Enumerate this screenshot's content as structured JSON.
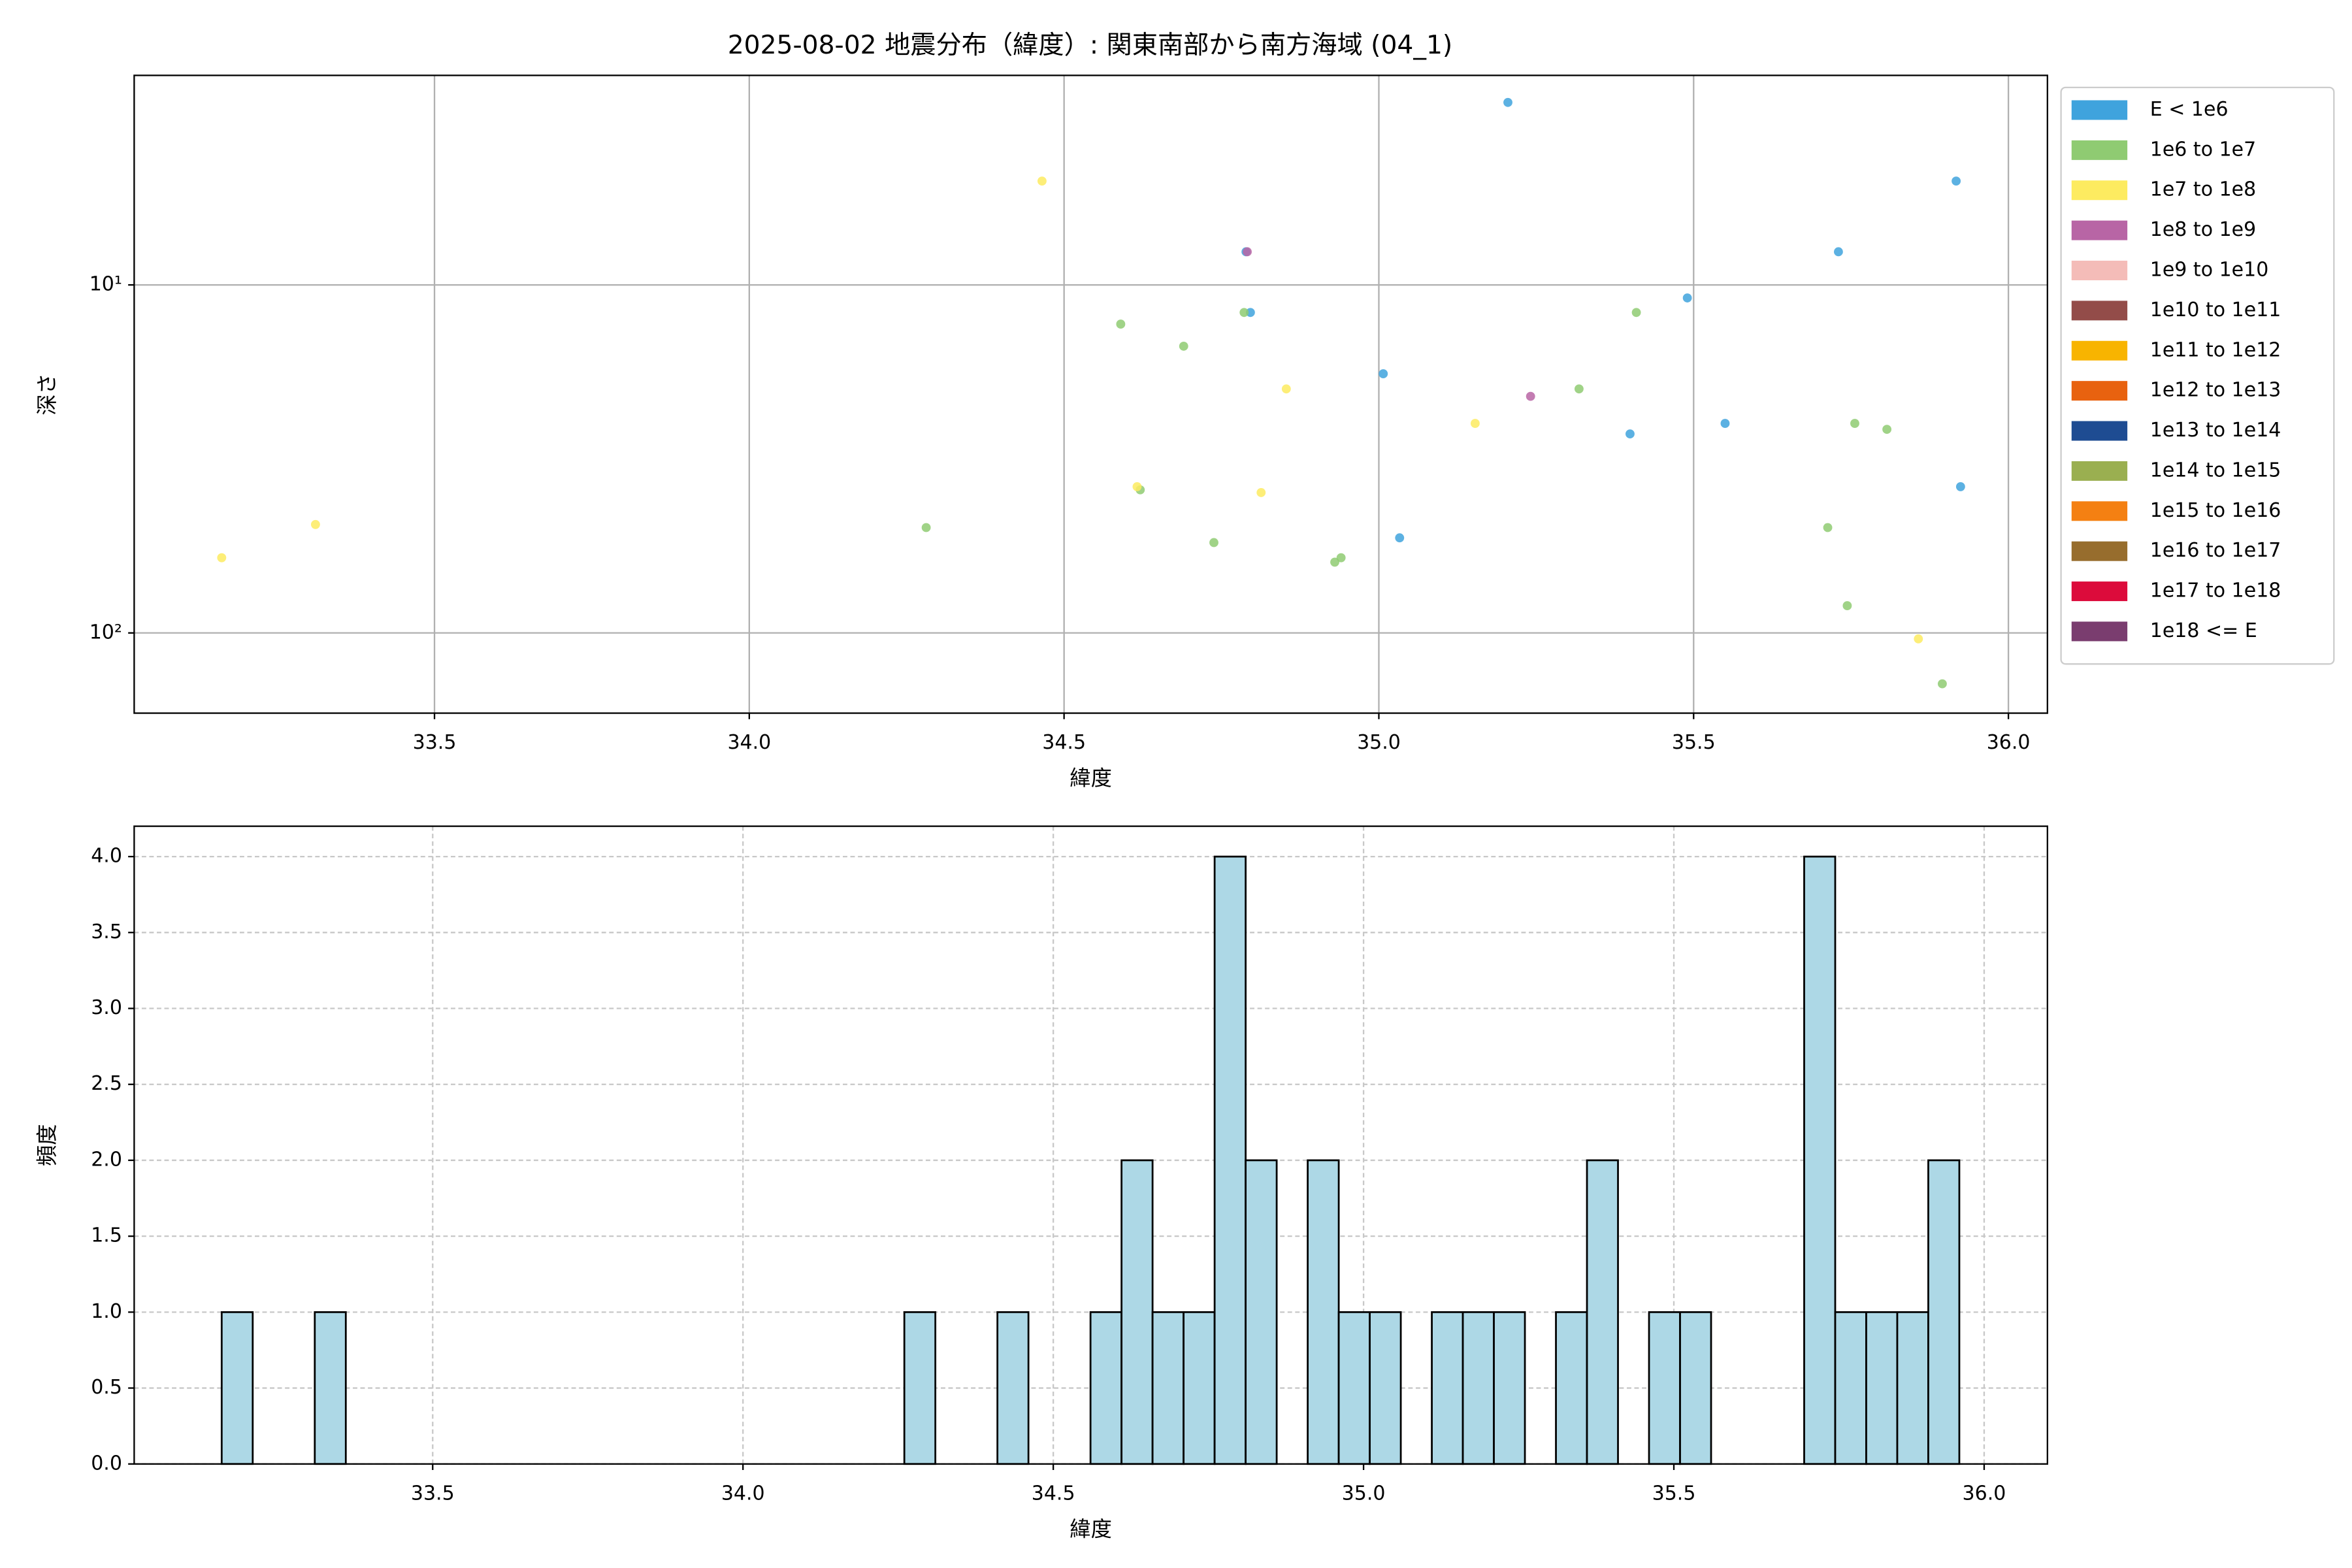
{
  "chart_data": [
    {
      "type": "scatter",
      "title": "2025-08-02 地震分布（緯度）: 関東南部から南方海域 (04_1)",
      "xlabel": "緯度",
      "ylabel": "深さ",
      "yscale": "log",
      "grid": true,
      "grid_style": "solid",
      "legend": "outside right",
      "xlim": [
        33.023,
        36.062
      ],
      "ylim": [
        170,
        2.5
      ],
      "xticks": [
        33.5,
        {
          "value": 34.0,
          "label": "34.0"
        },
        34.5,
        {
          "value": 35.0,
          "label": "35.0"
        },
        35.5,
        {
          "value": 36.0,
          "label": "36.0"
        }
      ],
      "yticks": [
        {
          "value": 10,
          "label": "10¹"
        },
        {
          "value": 100,
          "label": "10²"
        }
      ],
      "series": [
        {
          "name": "E < 1e6",
          "color": "#3fa3dd",
          "x": [
            34.789,
            34.796,
            35.007,
            35.033,
            35.205,
            35.399,
            35.49,
            35.55,
            35.73,
            35.917,
            35.924
          ],
          "values": [
            8.03,
            12.0,
            18.0,
            53.3,
            2.99,
            26.8,
            10.9,
            25.0,
            8.03,
            5.03,
            38.0
          ]
        },
        {
          "name": "1e6 to 1e7",
          "color": "#8fcb72",
          "x": [
            34.281,
            34.59,
            34.621,
            34.69,
            34.738,
            34.786,
            34.93,
            34.94,
            35.318,
            35.409,
            35.713,
            35.744,
            35.756,
            35.807,
            35.895
          ],
          "values": [
            49.8,
            12.96,
            38.8,
            15.0,
            55.0,
            12.0,
            62.6,
            60.8,
            19.9,
            12.0,
            49.8,
            83.5,
            25.0,
            26.0,
            140
          ]
        },
        {
          "name": "1e7 to 1e8",
          "color": "#fdeb60",
          "x": [
            33.162,
            33.311,
            34.465,
            34.616,
            34.813,
            34.853,
            35.153,
            35.857
          ],
          "values": [
            60.8,
            48.8,
            5.03,
            38.0,
            39.5,
            19.9,
            25.0,
            104
          ]
        },
        {
          "name": "1e8 to 1e9",
          "color": "#b865a5",
          "x": [
            34.791,
            35.241
          ],
          "values": [
            8.03,
            20.9
          ]
        },
        {
          "name": "1e9 to 1e10",
          "color": "#f4bcb8",
          "x": [],
          "values": []
        },
        {
          "name": "1e10 to 1e11",
          "color": "#934c49",
          "x": [],
          "values": []
        },
        {
          "name": "1e11 to 1e12",
          "color": "#f8b400",
          "x": [],
          "values": []
        },
        {
          "name": "1e12 to 1e13",
          "color": "#e8620f",
          "x": [],
          "values": []
        },
        {
          "name": "1e13 to 1e14",
          "color": "#1e4c92",
          "x": [],
          "values": []
        },
        {
          "name": "1e14 to 1e15",
          "color": "#9aaf50",
          "x": [],
          "values": []
        },
        {
          "name": "1e15 to 1e16",
          "color": "#f48012",
          "x": [],
          "values": []
        },
        {
          "name": "1e16 to 1e17",
          "color": "#976d2d",
          "x": [],
          "values": []
        },
        {
          "name": "1e17 to 1e18",
          "color": "#dc0b3b",
          "x": [],
          "values": []
        },
        {
          "name": "1e18 <= E",
          "color": "#7a3d6f",
          "x": [],
          "values": []
        }
      ]
    },
    {
      "type": "histogram",
      "xlabel": "緯度",
      "ylabel": "頻度",
      "grid": true,
      "grid_style": "dashed",
      "color": "#add8e6",
      "edgecolor": "#000000",
      "xlim": [
        33.019,
        36.102
      ],
      "ylim": [
        0,
        4.2
      ],
      "xticks": [
        33.5,
        {
          "value": 34.0,
          "label": "34.0"
        },
        34.5,
        {
          "value": 35.0,
          "label": "35.0"
        },
        35.5,
        {
          "value": 36.0,
          "label": "36.0"
        }
      ],
      "yticks": [
        {
          "value": 0,
          "label": "0.0"
        },
        0.5,
        {
          "value": 1,
          "label": "1.0"
        },
        1.5,
        {
          "value": 2,
          "label": "2.0"
        },
        2.5,
        {
          "value": 3,
          "label": "3.0"
        },
        3.5,
        {
          "value": 4,
          "label": "4.0"
        }
      ],
      "bins": [
        33.16,
        33.21,
        33.26,
        33.31,
        33.36,
        33.41,
        33.46,
        33.51,
        33.56,
        33.61,
        33.66,
        33.71,
        33.76,
        33.81,
        33.86,
        33.91,
        33.96,
        34.01,
        34.06,
        34.11,
        34.16,
        34.21,
        34.26,
        34.31,
        34.36,
        34.41,
        34.46,
        34.51,
        34.56,
        34.61,
        34.66,
        34.71,
        34.76,
        34.81,
        34.86,
        34.91,
        34.96,
        35.01,
        35.06,
        35.11,
        35.16,
        35.21,
        35.26,
        35.31,
        35.36,
        35.41,
        35.46,
        35.51,
        35.56,
        35.61,
        35.66,
        35.71,
        35.76,
        35.81,
        35.86,
        35.91,
        35.96
      ],
      "counts": [
        1,
        0,
        0,
        1,
        0,
        0,
        0,
        0,
        0,
        0,
        0,
        0,
        0,
        0,
        0,
        0,
        0,
        0,
        0,
        0,
        0,
        0,
        1,
        0,
        0,
        1,
        0,
        0,
        1,
        2,
        1,
        1,
        4,
        2,
        0,
        2,
        1,
        1,
        0,
        1,
        1,
        1,
        0,
        1,
        2,
        0,
        1,
        1,
        0,
        0,
        0,
        4,
        1,
        1,
        1,
        2
      ]
    }
  ]
}
